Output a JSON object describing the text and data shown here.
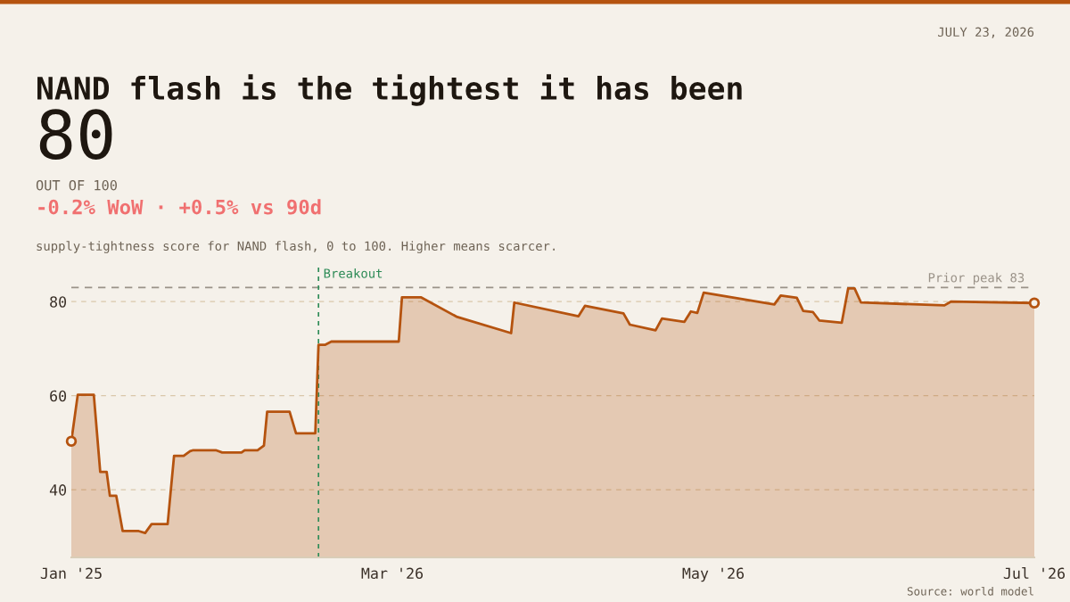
{
  "chart_data": {
    "type": "area",
    "title": "NAND flash is the tightest it has been",
    "subtitle": "supply-tightness score for NAND flash, 0 to 100. Higher means scarcer.",
    "annotations": [
      "JULY 23, 2026",
      "80",
      "OUT OF 100",
      "-0.2% WoW · +0.5% vs 90d",
      "Source: world model",
      "Breakout"
    ],
    "categories": [
      "Jan '25",
      null,
      null,
      null,
      null,
      null,
      null,
      null,
      null,
      null,
      null,
      null,
      null,
      null,
      null,
      null,
      null,
      null,
      null,
      null,
      null,
      null,
      null,
      null,
      null,
      null,
      null,
      null,
      null,
      null,
      null,
      null,
      null,
      null,
      null,
      null,
      null,
      null,
      null,
      null,
      null,
      null,
      null,
      null,
      null,
      null,
      null,
      null,
      null,
      null,
      null,
      null,
      null,
      null,
      null,
      null,
      null,
      null,
      null,
      null,
      null,
      null,
      null,
      null,
      null,
      null,
      null,
      null,
      null,
      null,
      null,
      null,
      null,
      null,
      null,
      null,
      null,
      null,
      null,
      null,
      null,
      null,
      null,
      null,
      null,
      null,
      null,
      null,
      null,
      null,
      null,
      null,
      null,
      null,
      null,
      null,
      null,
      null,
      null,
      null,
      "Mar '26",
      null,
      null,
      null,
      null,
      null,
      null,
      null,
      null,
      null,
      null,
      null,
      null,
      null,
      null,
      null,
      null,
      null,
      null,
      null,
      null,
      null,
      null,
      null,
      null,
      null,
      null,
      null,
      null,
      null,
      null,
      null,
      null,
      null,
      null,
      null,
      null,
      null,
      null,
      null,
      null,
      null,
      null,
      null,
      null,
      null,
      null,
      null,
      null,
      null,
      null,
      null,
      null,
      null,
      null,
      null,
      null,
      null,
      null,
      null,
      null,
      null,
      null,
      null,
      null,
      null,
      null,
      null,
      null,
      null,
      null,
      null,
      null,
      null,
      null,
      null,
      null,
      null,
      null,
      null,
      null,
      null,
      null,
      null,
      null,
      null,
      null,
      null,
      null,
      null,
      null,
      null,
      null,
      null,
      null,
      null,
      null,
      null,
      null,
      null,
      "May '26",
      null,
      null,
      null,
      null,
      null,
      null,
      null,
      null,
      null,
      null,
      null,
      null,
      null,
      null,
      null,
      null,
      null,
      null,
      null,
      null,
      null,
      null,
      null,
      null,
      null,
      null,
      null,
      null,
      null,
      null,
      null,
      null,
      null,
      null,
      null,
      null,
      null,
      null,
      null,
      null,
      null,
      null,
      null,
      null,
      null,
      null,
      null,
      null,
      null,
      null,
      null,
      null,
      null,
      null,
      null,
      null,
      null,
      null,
      null,
      null,
      null,
      null,
      null,
      null,
      null,
      null,
      null,
      null,
      null,
      null,
      null,
      null,
      null,
      null,
      null,
      null,
      null,
      null,
      null,
      null,
      null,
      null,
      null,
      null,
      null,
      null,
      null,
      null,
      null,
      null,
      null,
      null,
      null,
      null,
      null,
      null,
      null,
      null,
      null,
      "Jul '26"
    ],
    "series": [
      {
        "color": "#b5530f",
        "values": [
          50.3,
          null,
          60.2,
          null,
          null,
          null,
          null,
          60.2,
          null,
          43.8,
          null,
          43.8,
          38.7,
          null,
          38.7,
          null,
          31.2,
          null,
          null,
          null,
          null,
          31.2,
          null,
          30.8,
          null,
          32.7,
          null,
          null,
          null,
          null,
          32.7,
          null,
          47.2,
          null,
          null,
          47.2,
          null,
          48.2,
          48.4,
          null,
          null,
          null,
          null,
          null,
          null,
          48.4,
          null,
          47.9,
          null,
          null,
          null,
          null,
          null,
          47.9,
          48.4,
          null,
          null,
          null,
          48.4,
          null,
          49.4,
          56.6,
          null,
          null,
          null,
          null,
          null,
          null,
          56.6,
          null,
          52.0,
          null,
          null,
          null,
          null,
          null,
          52.0,
          70.8,
          null,
          70.8,
          null,
          71.5,
          null,
          null,
          null,
          null,
          null,
          null,
          null,
          null,
          null,
          null,
          null,
          null,
          null,
          null,
          null,
          null,
          null,
          null,
          null,
          null,
          71.5,
          80.9,
          null,
          null,
          null,
          null,
          null,
          80.9,
          null,
          null,
          null,
          null,
          null,
          null,
          null,
          null,
          null,
          null,
          76.8,
          null,
          null,
          null,
          null,
          null,
          null,
          null,
          null,
          null,
          null,
          null,
          null,
          null,
          null,
          null,
          null,
          73.3,
          79.8,
          null,
          null,
          null,
          null,
          null,
          null,
          null,
          null,
          null,
          null,
          null,
          null,
          null,
          null,
          null,
          null,
          null,
          null,
          null,
          76.9,
          null,
          79.1,
          null,
          null,
          null,
          null,
          null,
          null,
          null,
          null,
          null,
          null,
          null,
          77.5,
          null,
          75.1,
          null,
          null,
          null,
          null,
          null,
          null,
          null,
          73.9,
          null,
          76.4,
          null,
          null,
          null,
          null,
          null,
          null,
          75.7,
          null,
          77.9,
          null,
          77.6,
          null,
          81.9,
          null,
          null,
          null,
          null,
          null,
          null,
          null,
          null,
          null,
          null,
          null,
          null,
          null,
          null,
          null,
          null,
          null,
          null,
          null,
          null,
          null,
          79.4,
          null,
          81.3,
          null,
          null,
          null,
          null,
          80.8,
          null,
          78.0,
          null,
          null,
          77.8,
          null,
          76.0,
          null,
          null,
          null,
          null,
          null,
          null,
          75.5,
          null,
          82.8,
          null,
          82.8,
          null,
          79.8,
          null,
          null,
          null,
          null,
          null,
          null,
          null,
          null,
          null,
          null,
          null,
          null,
          null,
          null,
          null,
          null,
          null,
          null,
          null,
          null,
          null,
          null,
          null,
          null,
          null,
          79.2,
          null,
          80.0,
          null,
          null,
          null,
          null,
          null,
          null,
          null,
          null,
          null,
          null,
          null,
          null,
          null,
          null,
          null,
          null,
          null,
          null,
          null,
          null,
          null,
          null,
          null,
          null,
          null,
          79.7
        ]
      }
    ],
    "ylim": [
      25.6,
      88
    ],
    "yticks": [
      40,
      60,
      80
    ],
    "grid": "y",
    "ref_lines": [
      {
        "axis": "y",
        "value": 83,
        "label": "Prior peak 83",
        "color": "#9a9288",
        "line_style": "dashed"
      }
    ]
  }
}
